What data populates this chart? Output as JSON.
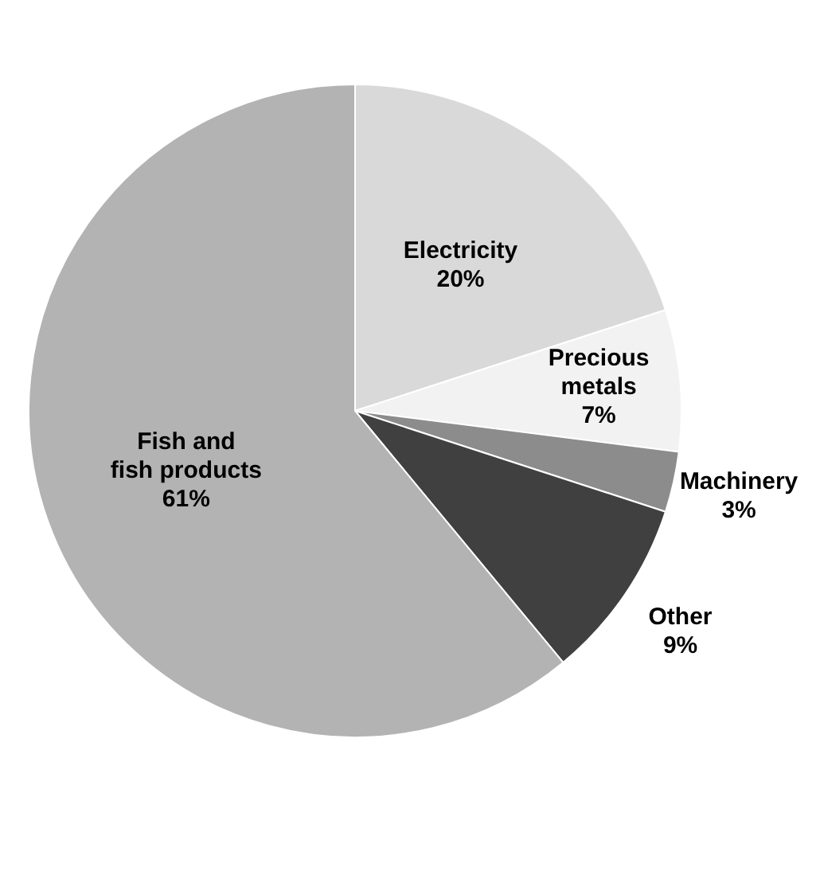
{
  "chart_data": {
    "type": "pie",
    "categories": [
      "Electricity",
      "Precious metals",
      "Machinery",
      "Other",
      "Fish and fish products"
    ],
    "values": [
      20,
      7,
      3,
      9,
      61
    ],
    "colors": [
      "#d9d9d9",
      "#f2f2f2",
      "#8c8c8c",
      "#404040",
      "#b3b3b3"
    ],
    "value_labels": [
      "20%",
      "7%",
      "3%",
      "9%",
      "61%"
    ]
  }
}
